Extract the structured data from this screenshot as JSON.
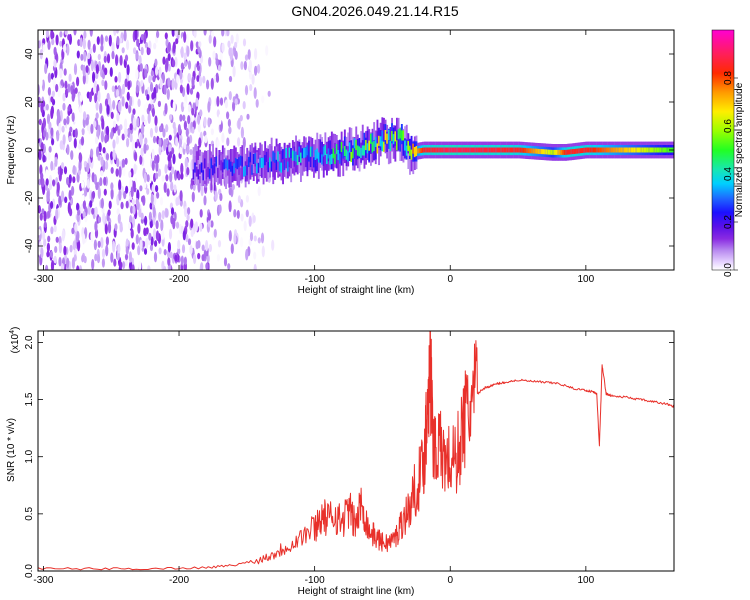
{
  "title": "GN04.2026.049.21.14.R15",
  "chart_data": [
    {
      "type": "heatmap",
      "title": "",
      "xlabel": "Height of straight line (km)",
      "ylabel": "Frequency (Hz)",
      "xlim": [
        -304,
        165
      ],
      "ylim": [
        -50,
        50
      ],
      "xticks": [
        "-300",
        "-200",
        "-100",
        "0",
        "100"
      ],
      "yticks": [
        "-40",
        "-20",
        "0",
        "20",
        "40"
      ],
      "colorbar": {
        "label": "Normalized spectral amplitude",
        "range": [
          0,
          1
        ],
        "ticks": [
          "0.0",
          "0.2",
          "0.4",
          "0.6",
          "0.8"
        ],
        "colormap": [
          "#ffffff",
          "#e8d6ff",
          "#b98cf0",
          "#8a2be2",
          "#5a10e8",
          "#1b10ff",
          "#1e6aff",
          "#00cfff",
          "#18e8b0",
          "#22ff22",
          "#9cff00",
          "#ffee00",
          "#ff9a00",
          "#ff2a00",
          "#ff1f5a",
          "#ff00d2"
        ],
        "stops": [
          0,
          0.03,
          0.08,
          0.13,
          0.18,
          0.24,
          0.3,
          0.36,
          0.42,
          0.5,
          0.58,
          0.66,
          0.74,
          0.82,
          0.9,
          1.0
        ]
      },
      "description_points": {
        "noise_region_end_km": -150,
        "noise_amplitude_peak": 0.15,
        "signal_ridge": {
          "x": [
            -190,
            -150,
            -120,
            -90,
            -70,
            -50,
            -35,
            -30,
            -20,
            0,
            50,
            75,
            85,
            100,
            165
          ],
          "center_hz": [
            -8,
            -6,
            -4,
            -2,
            0,
            4,
            4,
            -1,
            0,
            0,
            0,
            -1,
            -1,
            0,
            0
          ],
          "amplitude": [
            0.2,
            0.3,
            0.35,
            0.4,
            0.5,
            0.6,
            0.55,
            0.6,
            0.85,
            0.9,
            0.85,
            0.6,
            0.85,
            0.85,
            0.5
          ]
        }
      }
    },
    {
      "type": "line",
      "title": "",
      "xlabel": "Height of straight line (km)",
      "ylabel": "SNR (10 * v/v)",
      "yscale_label": "(x10",
      "yscale_exp": "4",
      "y_multiplier": 10000,
      "xlim": [
        -304,
        165
      ],
      "ylim": [
        0,
        2.1
      ],
      "xticks": [
        "-300",
        "-200",
        "-100",
        "0",
        "100"
      ],
      "yticks": [
        "0.0",
        "0.5",
        "1.0",
        "1.5",
        "2.0"
      ],
      "series": [
        {
          "color": "#e8302a",
          "x": [
            -304,
            -260,
            -220,
            -180,
            -160,
            -140,
            -130,
            -120,
            -110,
            -100,
            -95,
            -90,
            -85,
            -80,
            -75,
            -70,
            -65,
            -60,
            -55,
            -50,
            -45,
            -40,
            -35,
            -30,
            -25,
            -20,
            -17,
            -15,
            -13,
            -10,
            -5,
            0,
            5,
            10,
            15,
            20,
            25,
            30,
            35,
            40,
            50,
            60,
            70,
            80,
            90,
            100,
            105,
            108,
            110,
            112,
            115,
            120,
            130,
            140,
            150,
            160,
            165
          ],
          "y": [
            0.02,
            0.02,
            0.02,
            0.03,
            0.05,
            0.1,
            0.15,
            0.22,
            0.3,
            0.38,
            0.48,
            0.45,
            0.5,
            0.42,
            0.55,
            0.4,
            0.6,
            0.35,
            0.3,
            0.25,
            0.25,
            0.3,
            0.45,
            0.55,
            0.75,
            0.9,
            1.4,
            1.95,
            1.2,
            1.1,
            1.0,
            0.95,
            1.0,
            1.3,
            1.45,
            1.55,
            1.6,
            1.62,
            1.64,
            1.65,
            1.67,
            1.66,
            1.65,
            1.64,
            1.6,
            1.58,
            1.57,
            1.55,
            1.1,
            1.8,
            1.55,
            1.53,
            1.52,
            1.5,
            1.48,
            1.46,
            1.44
          ]
        }
      ]
    }
  ]
}
